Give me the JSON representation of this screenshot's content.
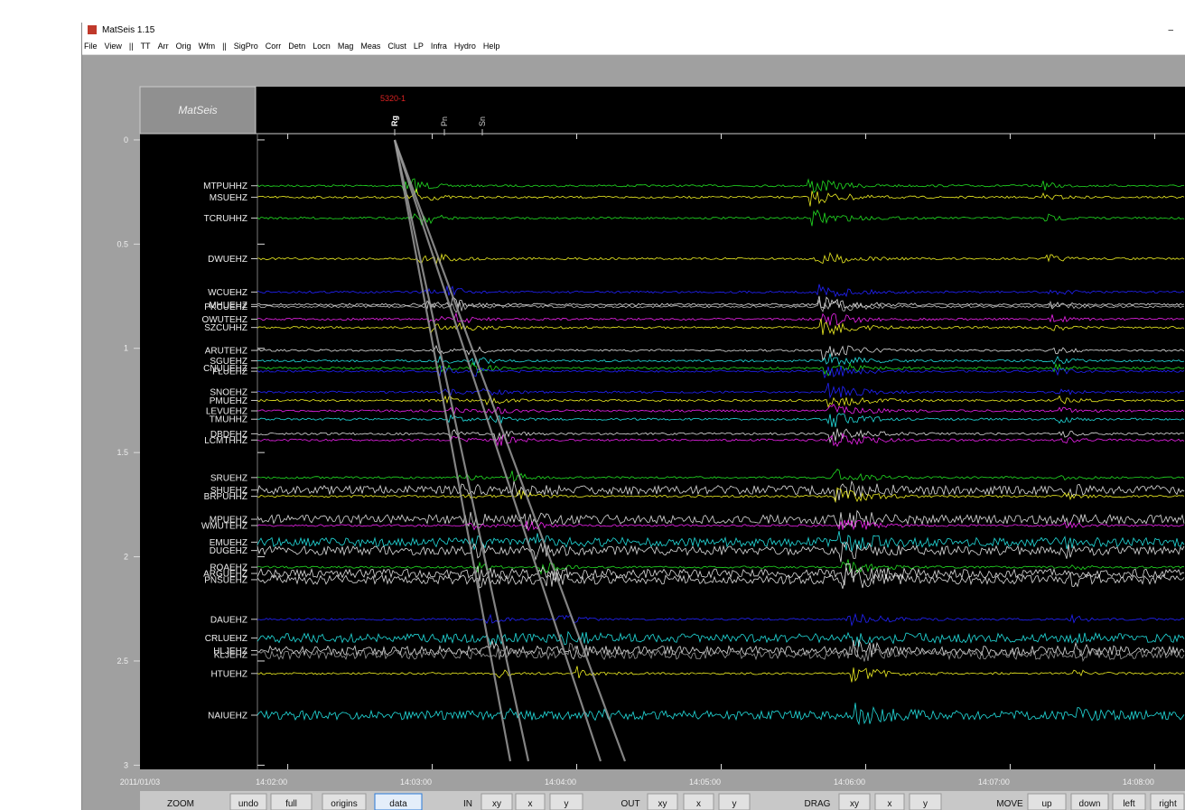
{
  "window": {
    "title": "MatSeis 1.15",
    "minimize": "–"
  },
  "menu": {
    "items": [
      "File",
      "View",
      "||",
      "TT",
      "Arr",
      "Orig",
      "Wfm",
      "||",
      "SigPro",
      "Corr",
      "Detn",
      "Locn",
      "Mag",
      "Meas",
      "Clust",
      "LP",
      "Infra",
      "Hydro",
      "Help"
    ]
  },
  "plot": {
    "logo": "MatSeis",
    "origin_label": "5320-1",
    "phases": [
      "Rg",
      "Pn",
      "Sn"
    ],
    "date": "2011/01/03",
    "ylim": [
      -0.03,
      3.02
    ],
    "yticks": [
      0,
      0.5,
      1,
      1.5,
      2,
      2.5,
      3
    ],
    "xlim": [
      1.79,
      8.21
    ],
    "xticks": [
      {
        "value": 2,
        "label": "14:02:00"
      },
      {
        "value": 3,
        "label": "14:03:00"
      },
      {
        "value": 4,
        "label": "14:04:00"
      },
      {
        "value": 5,
        "label": "14:05:00"
      },
      {
        "value": 6,
        "label": "14:06:00"
      },
      {
        "value": 7,
        "label": "14:07:00"
      },
      {
        "value": 8,
        "label": "14:08:00"
      }
    ],
    "stations": [
      {
        "name": "MTPUHHZ",
        "distance": 0.22,
        "color": "#22dd22"
      },
      {
        "name": "MSUEHZ",
        "distance": 0.275,
        "color": "#eeee22"
      },
      {
        "name": "TCRUHHZ",
        "distance": 0.375,
        "color": "#22dd22"
      },
      {
        "name": "DWUEHZ",
        "distance": 0.57,
        "color": "#eeee22"
      },
      {
        "name": "WCUEHZ",
        "distance": 0.73,
        "color": "#2222ff"
      },
      {
        "name": "MHUEHZ",
        "distance": 0.79,
        "color": "#dddddd"
      },
      {
        "name": "PKCUEHZ",
        "distance": 0.8,
        "color": "#bbbbbb"
      },
      {
        "name": "OWUTEHZ",
        "distance": 0.86,
        "color": "#ee22ee"
      },
      {
        "name": "SZCUHHZ",
        "distance": 0.9,
        "color": "#eeee22"
      },
      {
        "name": "ARUTEHZ",
        "distance": 1.01,
        "color": "#dddddd"
      },
      {
        "name": "SGUEHZ",
        "distance": 1.06,
        "color": "#22dddd"
      },
      {
        "name": "CNUUEHZ",
        "distance": 1.095,
        "color": "#22dd22"
      },
      {
        "name": "FLUEHZ",
        "distance": 1.11,
        "color": "#2222ff"
      },
      {
        "name": "SNOEHZ",
        "distance": 1.21,
        "color": "#2222ff"
      },
      {
        "name": "PMUEHZ",
        "distance": 1.25,
        "color": "#eeee22"
      },
      {
        "name": "LEVUEHZ",
        "distance": 1.3,
        "color": "#ee22ee"
      },
      {
        "name": "TMUHHZ",
        "distance": 1.34,
        "color": "#22dddd"
      },
      {
        "name": "DBDEHZ",
        "distance": 1.41,
        "color": "#dddddd"
      },
      {
        "name": "LCMTHHZ",
        "distance": 1.44,
        "color": "#ee22ee"
      },
      {
        "name": "SRUEHZ",
        "distance": 1.62,
        "color": "#22dd22"
      },
      {
        "name": "SHUEHZ",
        "distance": 1.68,
        "color": "#dddddd"
      },
      {
        "name": "BRPUHHZ",
        "distance": 1.71,
        "color": "#eeee22"
      },
      {
        "name": "MPUEHZ",
        "distance": 1.82,
        "color": "#dddddd"
      },
      {
        "name": "WMUTEHZ",
        "distance": 1.85,
        "color": "#ee22ee"
      },
      {
        "name": "EMUEHZ",
        "distance": 1.93,
        "color": "#22dddd"
      },
      {
        "name": "DUGEHZ",
        "distance": 1.97,
        "color": "#dddddd"
      },
      {
        "name": "ROAEHZ",
        "distance": 2.05,
        "color": "#22dd22"
      },
      {
        "name": "ARGUEHZ",
        "distance": 2.08,
        "color": "#dddddd"
      },
      {
        "name": "PNSUEHZ",
        "distance": 2.11,
        "color": "#dddddd"
      },
      {
        "name": "DAUEHZ",
        "distance": 2.3,
        "color": "#2222ff"
      },
      {
        "name": "CRLUEHZ",
        "distance": 2.39,
        "color": "#22dddd"
      },
      {
        "name": "HLJEHZ",
        "distance": 2.45,
        "color": "#dddddd"
      },
      {
        "name": "KLJEHZ",
        "distance": 2.47,
        "color": "#999999"
      },
      {
        "name": "HTUEHZ",
        "distance": 2.56,
        "color": "#eeee22"
      },
      {
        "name": "NAIUEHZ",
        "distance": 2.76,
        "color": "#22dddd"
      }
    ]
  },
  "controls": {
    "groups": [
      {
        "label": "ZOOM",
        "buttons": [
          "undo",
          "full",
          "origins",
          "data"
        ]
      },
      {
        "label": "IN",
        "buttons": [
          "xy",
          "x",
          "y"
        ]
      },
      {
        "label": "OUT",
        "buttons": [
          "xy",
          "x",
          "y"
        ]
      },
      {
        "label": "DRAG",
        "buttons": [
          "xy",
          "x",
          "y"
        ]
      },
      {
        "label": "MOVE",
        "buttons": [
          "up",
          "down",
          "left",
          "right"
        ]
      }
    ]
  }
}
